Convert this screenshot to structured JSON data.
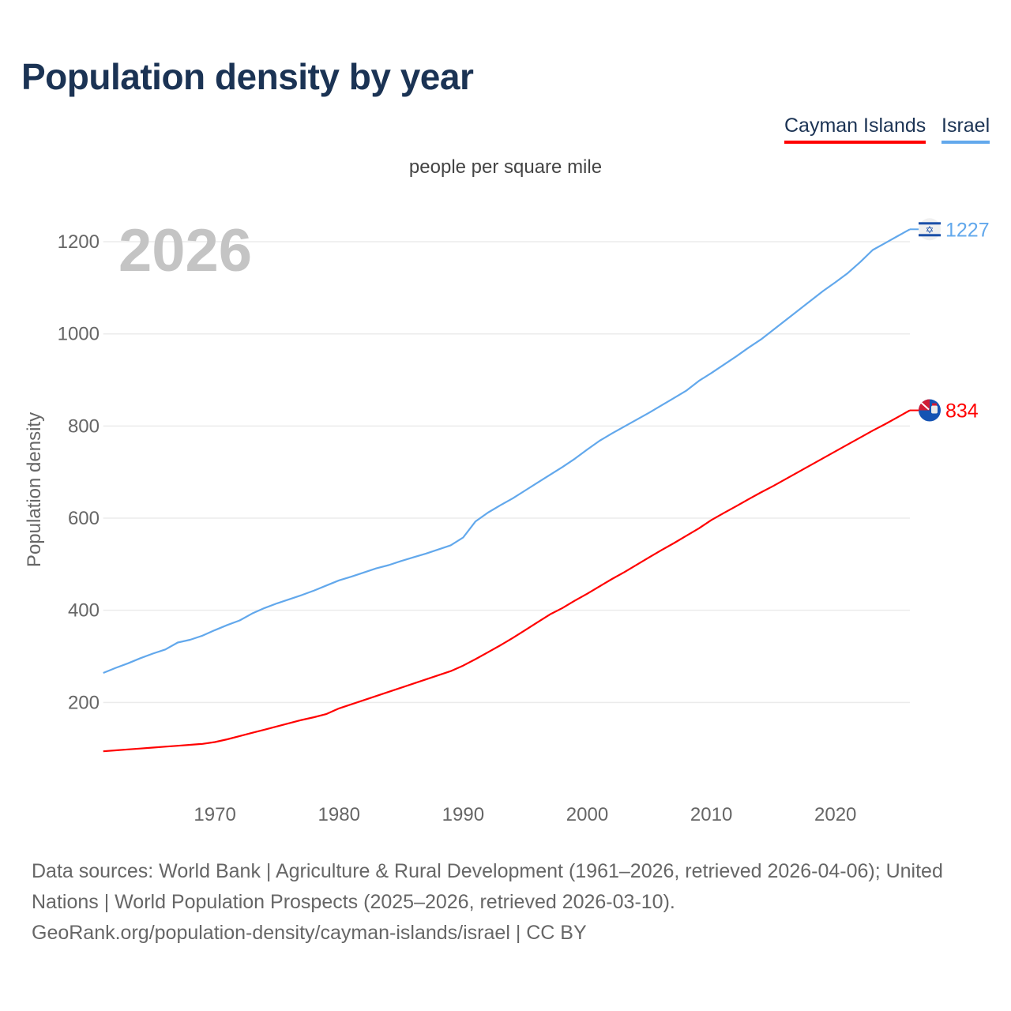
{
  "title": "Population density by year",
  "subtitle": "people per square mile",
  "legend": [
    {
      "label": "Cayman Islands",
      "color": "#ff0000"
    },
    {
      "label": "Israel",
      "color": "#62a8ec"
    }
  ],
  "footer": {
    "line1": "Data sources: World Bank | Agriculture & Rural Development (1961–2026, retrieved 2026-04-06); United Nations | World Population Prospects (2025–2026, retrieved 2026-03-10).",
    "line2": "GeoRank.org/population-density/cayman-islands/israel | CC BY"
  },
  "chart_data": {
    "type": "line",
    "title": "Population density by year",
    "subtitle": "people per square mile",
    "xlabel": "",
    "ylabel": "Population density",
    "year_watermark": "2026",
    "xlim": [
      1961,
      2026
    ],
    "ylim": [
      0,
      1300
    ],
    "x_ticks": [
      1970,
      1980,
      1990,
      2000,
      2010,
      2020
    ],
    "y_ticks": [
      200,
      400,
      600,
      800,
      1000,
      1200
    ],
    "grid": true,
    "legend_position": "top-right",
    "x_start": 1961,
    "series": [
      {
        "name": "Cayman Islands",
        "color": "#ff0000",
        "end_label": "834",
        "values": [
          94,
          96,
          98,
          100,
          102,
          104,
          106,
          108,
          110,
          114,
          120,
          127,
          134,
          141,
          148,
          155,
          162,
          168,
          175,
          187,
          196,
          205,
          214,
          223,
          232,
          241,
          250,
          259,
          268,
          280,
          294,
          309,
          324,
          340,
          357,
          374,
          391,
          405,
          421,
          436,
          452,
          468,
          483,
          499,
          515,
          531,
          546,
          562,
          578,
          596,
          611,
          626,
          641,
          656,
          670,
          685,
          700,
          715,
          730,
          745,
          760,
          775,
          790,
          804,
          819,
          834
        ]
      },
      {
        "name": "Israel",
        "color": "#62a8ec",
        "end_label": "1227",
        "values": [
          264,
          275,
          285,
          296,
          306,
          315,
          330,
          336,
          345,
          357,
          368,
          378,
          393,
          405,
          415,
          424,
          433,
          443,
          454,
          465,
          473,
          482,
          491,
          498,
          507,
          515,
          523,
          532,
          541,
          558,
          593,
          612,
          628,
          643,
          660,
          677,
          694,
          711,
          729,
          749,
          768,
          784,
          799,
          814,
          829,
          845,
          861,
          877,
          898,
          915,
          933,
          951,
          970,
          988,
          1009,
          1030,
          1051,
          1072,
          1093,
          1112,
          1132,
          1156,
          1182,
          1197,
          1212,
          1227
        ]
      }
    ]
  }
}
